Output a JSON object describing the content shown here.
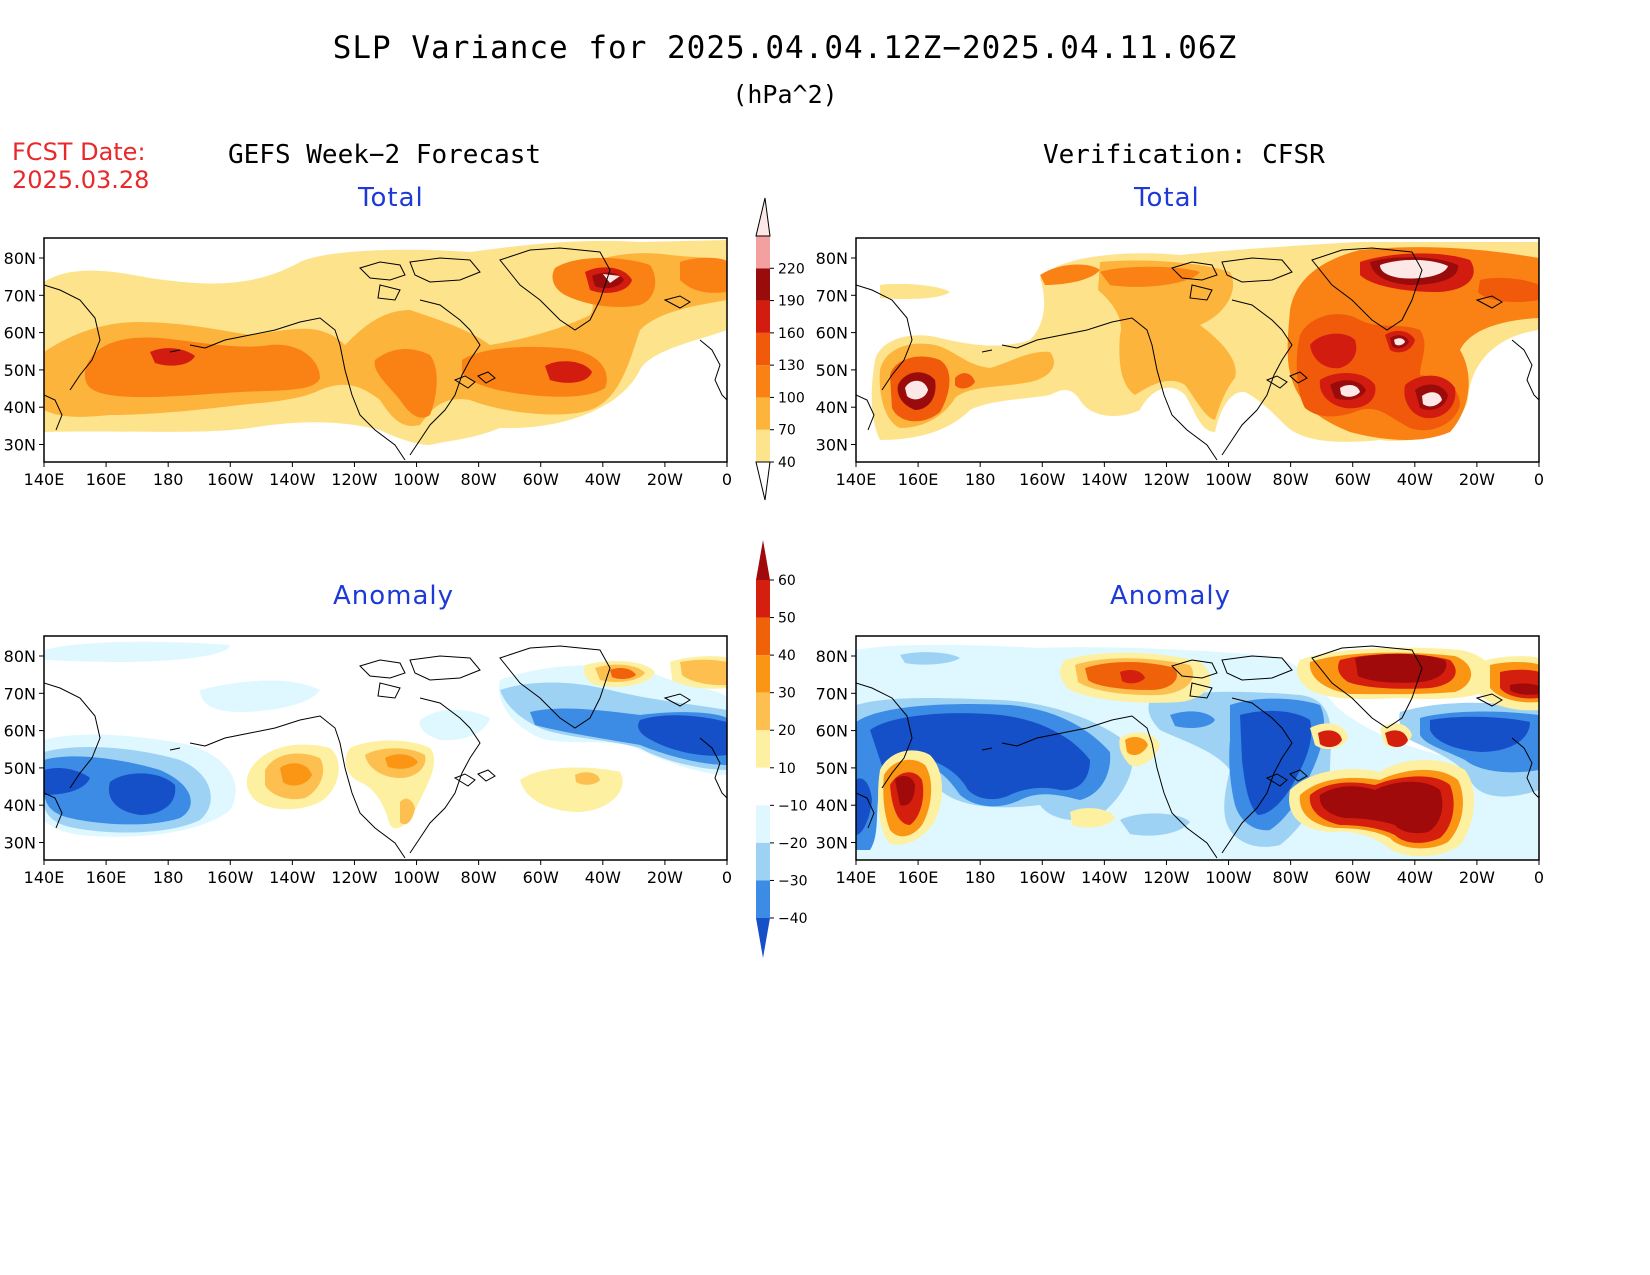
{
  "title": "SLP Variance for 2025.04.04.12Z−2025.04.11.06Z",
  "units": "(hPa^2)",
  "fcst_label": "FCST Date:",
  "fcst_date": "2025.03.28",
  "left_column_title": "GEFS Week−2 Forecast",
  "right_column_title": "Verification: CFSR",
  "panels": {
    "total_forecast": {
      "title": "Total"
    },
    "total_verification": {
      "title": "Total"
    },
    "anomaly_forecast": {
      "title": "Anomaly"
    },
    "anomaly_verification": {
      "title": "Anomaly"
    }
  },
  "axes": {
    "lon_labels": [
      "140E",
      "160E",
      "180",
      "160W",
      "140W",
      "120W",
      "100W",
      "80W",
      "60W",
      "40W",
      "20W",
      "0"
    ],
    "lat_labels": [
      "80N",
      "70N",
      "60N",
      "50N",
      "40N",
      "30N"
    ]
  },
  "total_colorbar": {
    "levels": [
      "40",
      "70",
      "100",
      "130",
      "160",
      "190",
      "220"
    ],
    "colors": [
      "#fde48c",
      "#fdb43c",
      "#fa8214",
      "#f05a0a",
      "#d21c10",
      "#9a0c0c",
      "#f2a0a0",
      "#fde8e8"
    ]
  },
  "anomaly_colorbar": {
    "levels": [
      "60",
      "50",
      "40",
      "30",
      "20",
      "10",
      "−10",
      "−20",
      "−30",
      "−40"
    ],
    "colors": [
      "#a00a0a",
      "#d41e0e",
      "#f0620a",
      "#fa9614",
      "#fdc050",
      "#fdf0a0",
      "#ffffff",
      "#dff8ff",
      "#9ed2f5",
      "#3c8ce6",
      "#1650c8",
      "#1650c8"
    ]
  }
}
